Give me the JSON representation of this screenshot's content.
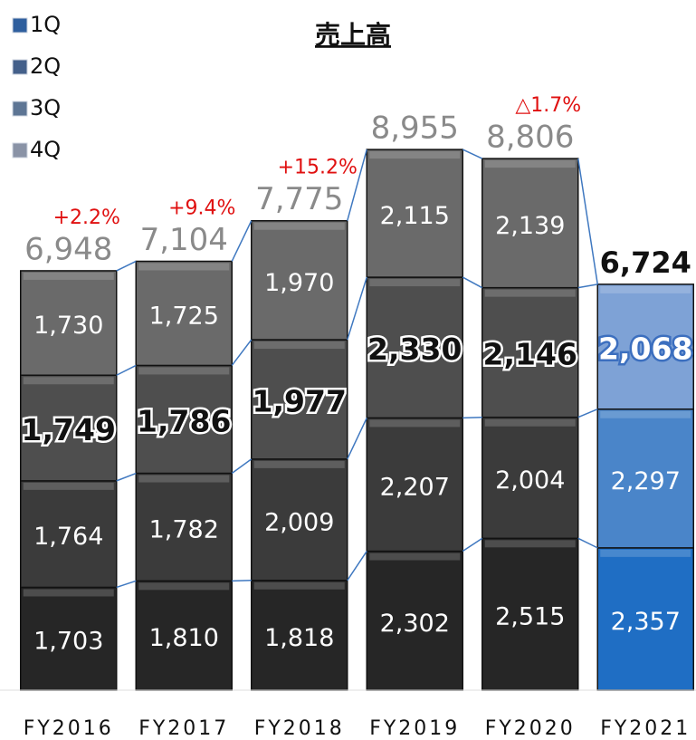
{
  "chart_data": {
    "type": "stacked_bar",
    "title": "売上高",
    "categories": [
      "FY2016",
      "FY2017",
      "FY2018",
      "FY2019",
      "FY2020",
      "FY2021"
    ],
    "series": [
      {
        "name": "1Q",
        "color": "#2f5f9e",
        "values": [
          1703,
          1810,
          1818,
          2302,
          2515,
          2357
        ],
        "value_labels": [
          "1,703",
          "1,810",
          "1,818",
          "2,302",
          "2,515",
          "2,357"
        ],
        "point_colors": [
          "#262626",
          "#262626",
          "#262626",
          "#262626",
          "#262626",
          "#1f6ec4"
        ]
      },
      {
        "name": "2Q",
        "color": "#44608a",
        "values": [
          1764,
          1782,
          2009,
          2207,
          2004,
          2297
        ],
        "value_labels": [
          "1,764",
          "1,782",
          "2,009",
          "2,207",
          "2,004",
          "2,297"
        ],
        "point_colors": [
          "#3b3b3b",
          "#3b3b3b",
          "#3b3b3b",
          "#3b3b3b",
          "#3b3b3b",
          "#4a85c9"
        ]
      },
      {
        "name": "3Q",
        "color": "#5d7594",
        "values": [
          1749,
          1786,
          1977,
          2330,
          2146,
          2068
        ],
        "value_labels": [
          "1,749",
          "1,786",
          "1,977",
          "2,330",
          "2,146",
          "2,068"
        ],
        "point_colors": [
          "#4e4e4e",
          "#4e4e4e",
          "#4e4e4e",
          "#4e4e4e",
          "#4e4e4e",
          "#7ea2d6"
        ],
        "bold": true
      },
      {
        "name": "4Q",
        "color": "#8a93a6",
        "values": [
          1730,
          1725,
          1970,
          2115,
          2139,
          null
        ],
        "value_labels": [
          "1,730",
          "1,725",
          "1,970",
          "2,115",
          "2,139",
          null
        ],
        "point_colors": [
          "#6a6a6a",
          "#6a6a6a",
          "#6a6a6a",
          "#6a6a6a",
          "#6a6a6a",
          null
        ]
      }
    ],
    "totals": [
      6948,
      7104,
      7775,
      8955,
      8806,
      6724
    ],
    "total_labels": [
      "6,948",
      "7,104",
      "7,775",
      "8,955",
      "8,806",
      "6,724"
    ],
    "growth_labels": [
      "+2.2%",
      "+9.4%",
      "+15.2%",
      null,
      "△1.7%",
      null
    ],
    "ylim": [
      0,
      9600
    ],
    "legend": "top-left"
  }
}
